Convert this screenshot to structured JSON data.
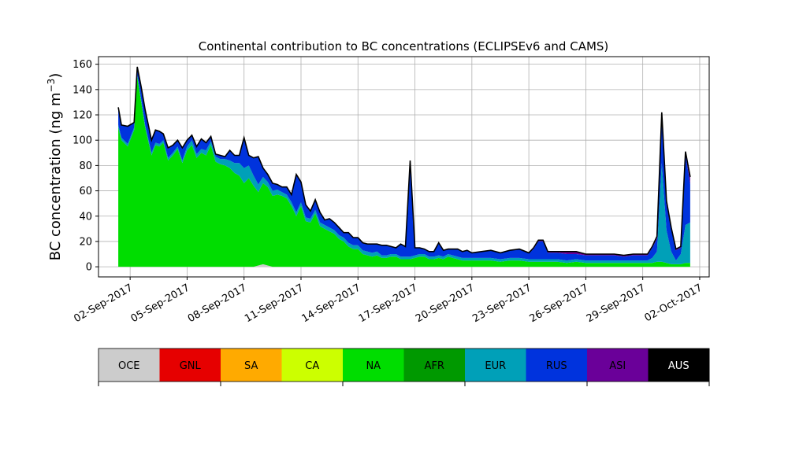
{
  "chart_data": {
    "type": "area",
    "title": "Continental contribution to BC concentrations (ECLIPSEv6 and CAMS)",
    "ylabel": "BC concentration",
    "ylabel_unit": "(ng m",
    "ylabel_exp": "−3",
    "ylabel_close": ")",
    "ylim": [
      -8,
      166
    ],
    "yticks": [
      0,
      20,
      40,
      60,
      80,
      100,
      120,
      140,
      160
    ],
    "xlim": [
      "2017-08-31T08:00",
      "2017-10-02T12:00"
    ],
    "xticks": [
      "02-Sep-2017",
      "05-Sep-2017",
      "08-Sep-2017",
      "11-Sep-2017",
      "14-Sep-2017",
      "17-Sep-2017",
      "20-Sep-2017",
      "23-Sep-2017",
      "26-Sep-2017",
      "29-Sep-2017",
      "02-Oct-2017"
    ],
    "grid": true,
    "stack_order": [
      "OCE",
      "NA",
      "EUR",
      "RUS",
      "ASI",
      "AUS"
    ],
    "x": [
      "2017-09-01T09:00",
      "2017-09-01T13:00",
      "2017-09-01T21:00",
      "2017-09-02T05:00",
      "2017-09-02T09:00",
      "2017-09-02T14:00",
      "2017-09-02T19:00",
      "2017-09-03T03:00",
      "2017-09-03T08:00",
      "2017-09-03T13:00",
      "2017-09-03T18:00",
      "2017-09-04T00:00",
      "2017-09-04T06:00",
      "2017-09-04T12:00",
      "2017-09-04T18:00",
      "2017-09-05T00:00",
      "2017-09-05T06:00",
      "2017-09-05T12:00",
      "2017-09-05T18:00",
      "2017-09-06T00:00",
      "2017-09-06T06:00",
      "2017-09-06T12:00",
      "2017-09-06T18:00",
      "2017-09-07T00:00",
      "2017-09-07T06:00",
      "2017-09-07T12:00",
      "2017-09-07T18:00",
      "2017-09-08T00:00",
      "2017-09-08T06:00",
      "2017-09-08T12:00",
      "2017-09-08T18:00",
      "2017-09-09T00:00",
      "2017-09-09T06:00",
      "2017-09-09T12:00",
      "2017-09-09T18:00",
      "2017-09-10T00:00",
      "2017-09-10T06:00",
      "2017-09-10T12:00",
      "2017-09-10T18:00",
      "2017-09-11T00:00",
      "2017-09-11T06:00",
      "2017-09-11T12:00",
      "2017-09-11T18:00",
      "2017-09-12T00:00",
      "2017-09-12T06:00",
      "2017-09-12T12:00",
      "2017-09-12T18:00",
      "2017-09-13T00:00",
      "2017-09-13T06:00",
      "2017-09-13T12:00",
      "2017-09-13T18:00",
      "2017-09-14T00:00",
      "2017-09-14T06:00",
      "2017-09-14T12:00",
      "2017-09-14T18:00",
      "2017-09-15T00:00",
      "2017-09-15T06:00",
      "2017-09-15T12:00",
      "2017-09-15T18:00",
      "2017-09-16T00:00",
      "2017-09-16T06:00",
      "2017-09-16T12:00",
      "2017-09-16T18:00",
      "2017-09-17T00:00",
      "2017-09-17T06:00",
      "2017-09-17T12:00",
      "2017-09-17T18:00",
      "2017-09-18T00:00",
      "2017-09-18T06:00",
      "2017-09-18T12:00",
      "2017-09-18T18:00",
      "2017-09-19T00:00",
      "2017-09-19T06:00",
      "2017-09-19T12:00",
      "2017-09-19T18:00",
      "2017-09-20T00:00",
      "2017-09-20T12:00",
      "2017-09-21T00:00",
      "2017-09-21T12:00",
      "2017-09-22T00:00",
      "2017-09-22T12:00",
      "2017-09-23T00:00",
      "2017-09-23T06:00",
      "2017-09-23T12:00",
      "2017-09-23T18:00",
      "2017-09-24T00:00",
      "2017-09-24T12:00",
      "2017-09-25T00:00",
      "2017-09-25T12:00",
      "2017-09-26T00:00",
      "2017-09-26T12:00",
      "2017-09-27T00:00",
      "2017-09-27T12:00",
      "2017-09-28T00:00",
      "2017-09-28T12:00",
      "2017-09-29T00:00",
      "2017-09-29T06:00",
      "2017-09-29T12:00",
      "2017-09-29T18:00",
      "2017-09-30T00:00",
      "2017-09-30T06:00",
      "2017-09-30T12:00",
      "2017-09-30T18:00",
      "2017-10-01T00:00",
      "2017-10-01T06:00",
      "2017-10-01T12:00"
    ],
    "series": [
      {
        "name": "OCE",
        "color": "#cccccc",
        "values": [
          0,
          0,
          0,
          0,
          0,
          0,
          0,
          0,
          0,
          0,
          0,
          0,
          0,
          0,
          0,
          0,
          0,
          0,
          0,
          0,
          0,
          0,
          0,
          0,
          0,
          0,
          0,
          0,
          0,
          0,
          1,
          2,
          1,
          0,
          0,
          0,
          0,
          0,
          0,
          0,
          0,
          0,
          0,
          0,
          0,
          0,
          0,
          0,
          0,
          0,
          0,
          0,
          0,
          0,
          0,
          0,
          0,
          0,
          0,
          0,
          0,
          0,
          0,
          0,
          0,
          0,
          0,
          0,
          0,
          0,
          0,
          0,
          0,
          0,
          0,
          0,
          0,
          0,
          0,
          0,
          0,
          0,
          0,
          0,
          0,
          0,
          0,
          0,
          0,
          0,
          0,
          0,
          0,
          0,
          0,
          0,
          0,
          0,
          0,
          0,
          0,
          0,
          0,
          0,
          0,
          0
        ]
      },
      {
        "name": "NA",
        "color": "#00dd00",
        "values": [
          110,
          100,
          95,
          108,
          150,
          130,
          110,
          88,
          96,
          95,
          98,
          84,
          88,
          93,
          82,
          92,
          96,
          86,
          90,
          88,
          96,
          83,
          81,
          80,
          78,
          74,
          72,
          66,
          70,
          64,
          58,
          64,
          62,
          56,
          57,
          56,
          54,
          48,
          40,
          48,
          36,
          35,
          42,
          32,
          30,
          28,
          26,
          22,
          20,
          16,
          14,
          14,
          10,
          9,
          8,
          9,
          7,
          7,
          8,
          8,
          6,
          6,
          6,
          7,
          8,
          8,
          6,
          6,
          7,
          6,
          8,
          7,
          6,
          5,
          5,
          5,
          5,
          5,
          4,
          5,
          5,
          4,
          4,
          4,
          4,
          4,
          4,
          3,
          4,
          3,
          3,
          3,
          3,
          3,
          3,
          3,
          3,
          3,
          4,
          4,
          3,
          2,
          2,
          2,
          3,
          3
        ]
      },
      {
        "name": "EUR",
        "color": "#00a0b8",
        "values": [
          2,
          2,
          2,
          2,
          2,
          2,
          2,
          2,
          2,
          2,
          2,
          2,
          2,
          2,
          2,
          3,
          4,
          3,
          3,
          4,
          3,
          4,
          4,
          5,
          6,
          8,
          10,
          12,
          10,
          8,
          6,
          5,
          4,
          4,
          4,
          3,
          3,
          3,
          3,
          3,
          3,
          3,
          3,
          3,
          3,
          3,
          3,
          3,
          3,
          3,
          3,
          3,
          3,
          3,
          3,
          3,
          2,
          2,
          2,
          2,
          2,
          2,
          2,
          2,
          2,
          2,
          2,
          2,
          2,
          2,
          2,
          2,
          2,
          2,
          2,
          2,
          2,
          2,
          2,
          2,
          2,
          2,
          2,
          2,
          2,
          2,
          2,
          2,
          2,
          2,
          2,
          2,
          2,
          2,
          2,
          2,
          2,
          4,
          8,
          78,
          26,
          10,
          3,
          8,
          30,
          32
        ]
      },
      {
        "name": "RUS",
        "color": "#0033dd",
        "values": [
          14,
          10,
          14,
          4,
          6,
          10,
          12,
          10,
          10,
          10,
          5,
          8,
          6,
          5,
          10,
          5,
          4,
          6,
          8,
          6,
          4,
          2,
          3,
          2,
          8,
          6,
          6,
          24,
          8,
          14,
          22,
          7,
          6,
          6,
          4,
          4,
          6,
          6,
          30,
          16,
          10,
          6,
          8,
          8,
          4,
          7,
          6,
          6,
          4,
          8,
          6,
          6,
          6,
          6,
          7,
          6,
          8,
          8,
          6,
          5,
          10,
          8,
          76,
          6,
          5,
          4,
          4,
          4,
          10,
          5,
          4,
          5,
          6,
          5,
          6,
          4,
          5,
          6,
          5,
          6,
          7,
          5,
          8,
          14,
          14,
          5,
          5,
          5,
          4,
          4,
          4,
          4,
          4,
          3,
          4,
          4,
          4,
          8,
          10,
          38,
          20,
          18,
          8,
          5,
          56,
          30
        ]
      },
      {
        "name": "ASI",
        "color": "#6a0099",
        "values": [
          0,
          0,
          0,
          0,
          0,
          0,
          0,
          0,
          0,
          0,
          0,
          0,
          0,
          0,
          0,
          0,
          0,
          0,
          0,
          0,
          0,
          0,
          0,
          0,
          0,
          0,
          0,
          0,
          0,
          0,
          0,
          0,
          0,
          0,
          0,
          0,
          0,
          0,
          0,
          0,
          0,
          0,
          0,
          0,
          0,
          0,
          0,
          0,
          0,
          0,
          0,
          0,
          0,
          0,
          0,
          0,
          0,
          0,
          0,
          0,
          0,
          0,
          0,
          0,
          0,
          0,
          0,
          0,
          0,
          0,
          0,
          0,
          0,
          0,
          0,
          0,
          0,
          0,
          0,
          0,
          0,
          0,
          1,
          1,
          1,
          1,
          1,
          2,
          2,
          1,
          1,
          1,
          1,
          1,
          1,
          1,
          1,
          1,
          2,
          2,
          3,
          1,
          1,
          1,
          2,
          6
        ]
      },
      {
        "name": "AUS",
        "color": "#000000",
        "values": [
          0,
          0,
          0,
          0,
          0,
          0,
          0,
          0,
          0,
          0,
          0,
          0,
          0,
          0,
          0,
          0,
          0,
          0,
          0,
          0,
          0,
          0,
          0,
          0,
          0,
          0,
          0,
          0,
          0,
          0,
          0,
          0,
          0,
          0,
          0,
          0,
          0,
          0,
          0,
          0,
          0,
          0,
          0,
          0,
          0,
          0,
          0,
          0,
          0,
          0,
          0,
          0,
          0,
          0,
          0,
          0,
          0,
          0,
          0,
          0,
          0,
          0,
          0,
          0,
          0,
          0,
          0,
          0,
          0,
          0,
          0,
          0,
          0,
          0,
          0,
          0,
          0,
          0,
          0,
          0,
          0,
          0,
          0,
          0,
          0,
          0,
          0,
          0,
          0,
          0,
          0,
          0,
          0,
          0,
          0,
          0,
          0,
          0,
          0,
          0,
          0,
          0,
          0,
          0,
          0,
          0
        ]
      }
    ],
    "legend": {
      "placement": "bottom",
      "items": [
        {
          "label": "OCE",
          "color": "#cccccc",
          "text_color": "#000000"
        },
        {
          "label": "GNL",
          "color": "#e60000",
          "text_color": "#000000"
        },
        {
          "label": "SA",
          "color": "#ffaa00",
          "text_color": "#000000"
        },
        {
          "label": "CA",
          "color": "#ccff00",
          "text_color": "#000000"
        },
        {
          "label": "NA",
          "color": "#00dd00",
          "text_color": "#000000"
        },
        {
          "label": "AFR",
          "color": "#009900",
          "text_color": "#000000"
        },
        {
          "label": "EUR",
          "color": "#00a0b8",
          "text_color": "#000000"
        },
        {
          "label": "RUS",
          "color": "#0033dd",
          "text_color": "#000000"
        },
        {
          "label": "ASI",
          "color": "#6a0099",
          "text_color": "#000000"
        },
        {
          "label": "AUS",
          "color": "#000000",
          "text_color": "#ffffff"
        }
      ]
    }
  }
}
